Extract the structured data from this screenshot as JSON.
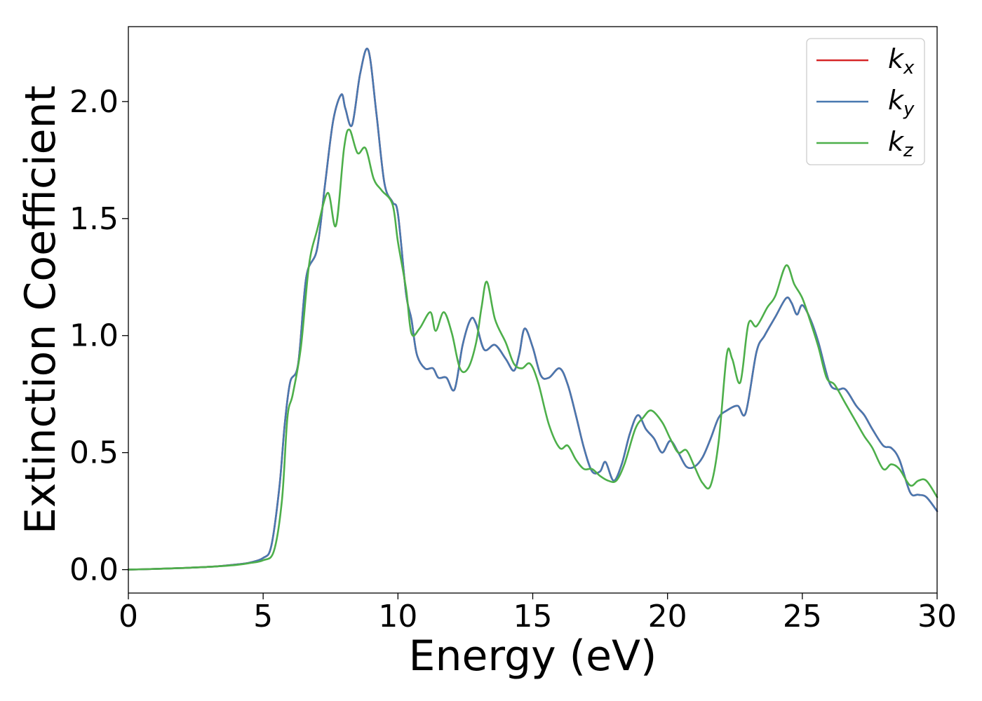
{
  "chart_data": {
    "type": "line",
    "title": "",
    "xlabel": "Energy (eV)",
    "ylabel": "Extinction Coefficient",
    "xlim": [
      0,
      30
    ],
    "ylim": [
      -0.1,
      2.32
    ],
    "xticks": [
      0,
      5,
      10,
      15,
      20,
      25,
      30
    ],
    "xtick_labels": [
      "0",
      "5",
      "10",
      "15",
      "20",
      "25",
      "30"
    ],
    "yticks": [
      0.0,
      0.5,
      1.0,
      1.5,
      2.0
    ],
    "ytick_labels": [
      "0.0",
      "0.5",
      "1.0",
      "1.5",
      "2.0"
    ],
    "grid": false,
    "legend_position": "top-right",
    "series": [
      {
        "name": "k",
        "subscript": "x",
        "color": "#d62728",
        "x": [
          0,
          1,
          2,
          3,
          4,
          4.5,
          5,
          5.3,
          5.6,
          5.8,
          6,
          6.3,
          6.6,
          7,
          7.3,
          7.6,
          7.9,
          8.05,
          8.3,
          8.6,
          8.9,
          9.2,
          9.5,
          9.8,
          10,
          10.3,
          10.5,
          10.7,
          11,
          11.3,
          11.5,
          11.8,
          12.1,
          12.4,
          12.7,
          12.9,
          13.2,
          13.6,
          14,
          14.3,
          14.5,
          14.7,
          15,
          15.3,
          15.6,
          16,
          16.3,
          16.6,
          16.9,
          17.2,
          17.5,
          17.7,
          18,
          18.3,
          18.6,
          18.9,
          19.2,
          19.5,
          19.8,
          20.1,
          20.4,
          20.7,
          21,
          21.3,
          21.6,
          21.9,
          22.2,
          22.6,
          22.9,
          23.3,
          23.6,
          24,
          24.4,
          24.6,
          24.8,
          25,
          25.3,
          25.6,
          26,
          26.3,
          26.6,
          27,
          27.3,
          27.6,
          28,
          28.3,
          28.6,
          29,
          29.3,
          29.6,
          30
        ],
        "y": [
          0,
          0.003,
          0.007,
          0.012,
          0.022,
          0.03,
          0.05,
          0.1,
          0.35,
          0.62,
          0.8,
          0.88,
          1.25,
          1.37,
          1.65,
          1.92,
          2.03,
          1.97,
          1.9,
          2.12,
          2.22,
          1.95,
          1.65,
          1.57,
          1.52,
          1.18,
          1.07,
          0.92,
          0.86,
          0.86,
          0.82,
          0.82,
          0.77,
          0.96,
          1.07,
          1.05,
          0.94,
          0.96,
          0.9,
          0.85,
          0.92,
          1.03,
          0.95,
          0.83,
          0.82,
          0.86,
          0.79,
          0.66,
          0.52,
          0.42,
          0.42,
          0.46,
          0.38,
          0.45,
          0.58,
          0.66,
          0.6,
          0.56,
          0.5,
          0.55,
          0.5,
          0.44,
          0.44,
          0.48,
          0.56,
          0.65,
          0.68,
          0.7,
          0.67,
          0.93,
          1.0,
          1.08,
          1.16,
          1.14,
          1.09,
          1.13,
          1.07,
          0.97,
          0.8,
          0.77,
          0.77,
          0.7,
          0.66,
          0.6,
          0.53,
          0.52,
          0.47,
          0.33,
          0.32,
          0.31,
          0.25
        ]
      },
      {
        "name": "k",
        "subscript": "y",
        "color": "#4878b0",
        "x": [
          0,
          1,
          2,
          3,
          4,
          4.5,
          5,
          5.3,
          5.6,
          5.8,
          6,
          6.3,
          6.6,
          7,
          7.3,
          7.6,
          7.9,
          8.05,
          8.3,
          8.6,
          8.9,
          9.2,
          9.5,
          9.8,
          10,
          10.3,
          10.5,
          10.7,
          11,
          11.3,
          11.5,
          11.8,
          12.1,
          12.4,
          12.7,
          12.9,
          13.2,
          13.6,
          14,
          14.3,
          14.5,
          14.7,
          15,
          15.3,
          15.6,
          16,
          16.3,
          16.6,
          16.9,
          17.2,
          17.5,
          17.7,
          18,
          18.3,
          18.6,
          18.9,
          19.2,
          19.5,
          19.8,
          20.1,
          20.4,
          20.7,
          21,
          21.3,
          21.6,
          21.9,
          22.2,
          22.6,
          22.9,
          23.3,
          23.6,
          24,
          24.4,
          24.6,
          24.8,
          25,
          25.3,
          25.6,
          26,
          26.3,
          26.6,
          27,
          27.3,
          27.6,
          28,
          28.3,
          28.6,
          29,
          29.3,
          29.6,
          30
        ],
        "y": [
          0,
          0.003,
          0.007,
          0.012,
          0.022,
          0.03,
          0.05,
          0.1,
          0.35,
          0.62,
          0.8,
          0.88,
          1.25,
          1.37,
          1.65,
          1.92,
          2.03,
          1.97,
          1.9,
          2.12,
          2.22,
          1.95,
          1.65,
          1.57,
          1.52,
          1.18,
          1.07,
          0.92,
          0.86,
          0.86,
          0.82,
          0.82,
          0.77,
          0.96,
          1.07,
          1.05,
          0.94,
          0.96,
          0.9,
          0.85,
          0.92,
          1.03,
          0.95,
          0.83,
          0.82,
          0.86,
          0.79,
          0.66,
          0.52,
          0.42,
          0.42,
          0.46,
          0.38,
          0.45,
          0.58,
          0.66,
          0.6,
          0.56,
          0.5,
          0.55,
          0.5,
          0.44,
          0.44,
          0.48,
          0.56,
          0.65,
          0.68,
          0.7,
          0.67,
          0.93,
          1.0,
          1.08,
          1.16,
          1.14,
          1.09,
          1.13,
          1.07,
          0.97,
          0.8,
          0.77,
          0.77,
          0.7,
          0.66,
          0.6,
          0.53,
          0.52,
          0.47,
          0.33,
          0.32,
          0.31,
          0.25
        ]
      },
      {
        "name": "k",
        "subscript": "z",
        "color": "#4daf4a",
        "x": [
          0,
          1,
          2,
          3,
          4,
          4.5,
          5,
          5.4,
          5.7,
          5.9,
          6.1,
          6.4,
          6.7,
          7,
          7.4,
          7.7,
          8,
          8.2,
          8.5,
          8.8,
          9.1,
          9.4,
          9.8,
          10,
          10.3,
          10.5,
          10.8,
          11.2,
          11.4,
          11.7,
          12,
          12.3,
          12.6,
          12.9,
          13.1,
          13.3,
          13.6,
          14,
          14.3,
          14.6,
          14.9,
          15.2,
          15.6,
          16,
          16.3,
          16.6,
          16.9,
          17.2,
          17.5,
          17.8,
          18.1,
          18.4,
          18.8,
          19.1,
          19.4,
          19.8,
          20.1,
          20.4,
          20.7,
          21,
          21.3,
          21.6,
          21.9,
          22.2,
          22.4,
          22.7,
          23,
          23.3,
          23.7,
          24,
          24.4,
          24.7,
          25,
          25.3,
          25.6,
          25.9,
          26.2,
          26.6,
          27,
          27.3,
          27.6,
          28,
          28.3,
          28.6,
          29,
          29.3,
          29.6,
          30
        ],
        "y": [
          0,
          0.003,
          0.007,
          0.012,
          0.02,
          0.028,
          0.04,
          0.08,
          0.3,
          0.65,
          0.75,
          0.95,
          1.3,
          1.45,
          1.61,
          1.47,
          1.8,
          1.88,
          1.78,
          1.8,
          1.67,
          1.62,
          1.56,
          1.4,
          1.2,
          1.01,
          1.03,
          1.1,
          1.02,
          1.1,
          1.01,
          0.86,
          0.86,
          0.97,
          1.12,
          1.23,
          1.07,
          0.97,
          0.88,
          0.86,
          0.88,
          0.8,
          0.62,
          0.52,
          0.53,
          0.47,
          0.43,
          0.43,
          0.4,
          0.38,
          0.38,
          0.45,
          0.6,
          0.65,
          0.68,
          0.63,
          0.56,
          0.5,
          0.51,
          0.44,
          0.37,
          0.36,
          0.55,
          0.92,
          0.9,
          0.8,
          1.05,
          1.04,
          1.12,
          1.17,
          1.3,
          1.22,
          1.16,
          1.06,
          0.95,
          0.82,
          0.79,
          0.71,
          0.63,
          0.57,
          0.52,
          0.43,
          0.45,
          0.43,
          0.36,
          0.38,
          0.38,
          0.31
        ]
      }
    ]
  }
}
